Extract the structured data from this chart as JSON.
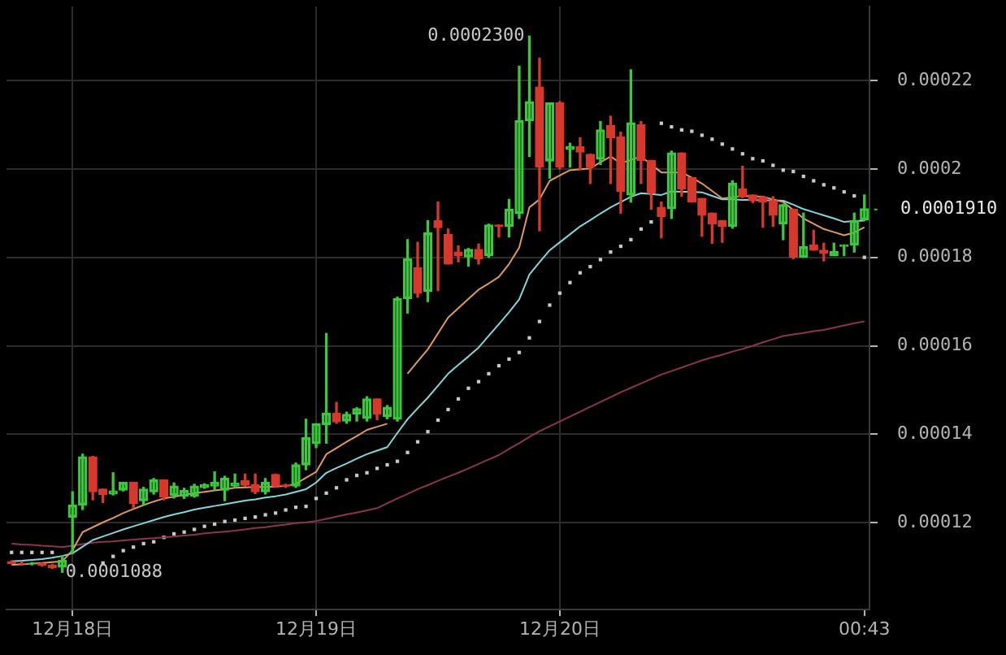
{
  "chart_data": {
    "type": "candlestick",
    "categories": [
      null,
      null,
      null,
      null,
      null,
      null,
      "12月18日",
      null,
      null,
      null,
      null,
      null,
      null,
      null,
      null,
      null,
      null,
      null,
      null,
      null,
      null,
      null,
      null,
      null,
      null,
      null,
      null,
      null,
      null,
      null,
      "12月19日",
      null,
      null,
      null,
      null,
      null,
      null,
      null,
      null,
      null,
      null,
      null,
      null,
      null,
      null,
      null,
      null,
      null,
      null,
      null,
      null,
      null,
      null,
      null,
      "12月20日",
      null,
      null,
      null,
      null,
      null,
      null,
      null,
      null,
      null,
      null,
      null,
      null,
      null,
      null,
      null,
      null,
      null,
      null,
      null,
      null,
      null,
      null,
      null,
      null,
      null,
      null,
      null,
      null,
      null,
      "00:43"
    ],
    "ohlc": [
      [
        0.0001112,
        0.0001114,
        0.0001107,
        0.0001108
      ],
      [
        0.0001108,
        0.0001112,
        0.0001105,
        0.0001107
      ],
      [
        0.0001107,
        0.000111,
        0.0001105,
        0.0001108
      ],
      [
        0.0001108,
        0.000111,
        0.0001102,
        0.0001104
      ],
      [
        0.0001104,
        0.0001106,
        0.0001097,
        0.0001099
      ],
      [
        0.00011,
        0.0001125,
        0.0001088,
        0.0001115
      ],
      [
        0.0001213,
        0.000127,
        0.000113,
        0.000124
      ],
      [
        0.000124,
        0.0001355,
        0.000123,
        0.0001349
      ],
      [
        0.0001349,
        0.000135,
        0.0001252,
        0.000127
      ],
      [
        0.0001276,
        0.0001276,
        0.0001246,
        0.0001264
      ],
      [
        0.0001265,
        0.0001313,
        0.0001263,
        0.0001272
      ],
      [
        0.0001274,
        0.0001291,
        0.0001272,
        0.0001291
      ],
      [
        0.0001291,
        0.0001291,
        0.0001234,
        0.0001243
      ],
      [
        0.000125,
        0.000128,
        0.000124,
        0.0001276
      ],
      [
        0.000127,
        0.00013,
        0.0001265,
        0.0001297
      ],
      [
        0.0001297,
        0.0001297,
        0.0001252,
        0.0001258
      ],
      [
        0.0001262,
        0.000129,
        0.0001256,
        0.0001283
      ],
      [
        0.000126,
        0.0001278,
        0.0001255,
        0.0001273
      ],
      [
        0.000126,
        0.0001287,
        0.0001258,
        0.0001283
      ],
      [
        0.000128,
        0.0001288,
        0.0001278,
        0.0001286
      ],
      [
        0.0001283,
        0.0001315,
        0.0001274,
        0.0001291
      ],
      [
        0.0001274,
        0.0001305,
        0.000125,
        0.0001301
      ],
      [
        0.0001283,
        0.000131,
        0.000128,
        0.000129
      ],
      [
        0.0001295,
        0.000131,
        0.0001283,
        0.0001285
      ],
      [
        0.0001286,
        0.000131,
        0.0001266,
        0.000127
      ],
      [
        0.000127,
        0.00013,
        0.0001265,
        0.0001291
      ],
      [
        0.0001309,
        0.000131,
        0.000128,
        0.0001283
      ],
      [
        0.0001285,
        0.0001287,
        0.000128,
        0.0001283
      ],
      [
        0.0001283,
        0.0001335,
        0.000128,
        0.0001331
      ],
      [
        0.0001331,
        0.0001434,
        0.000132,
        0.0001392
      ],
      [
        0.0001379,
        0.0001424,
        0.000137,
        0.0001424
      ],
      [
        0.0001422,
        0.0001628,
        0.000138,
        0.0001448
      ],
      [
        0.0001448,
        0.0001472,
        0.0001425,
        0.0001428
      ],
      [
        0.000143,
        0.000145,
        0.0001425,
        0.0001445
      ],
      [
        0.0001446,
        0.000146,
        0.000143,
        0.0001458
      ],
      [
        0.0001436,
        0.0001485,
        0.000143,
        0.000148
      ],
      [
        0.000148,
        0.000148,
        0.0001433,
        0.0001446
      ],
      [
        0.000144,
        0.0001465,
        0.0001435,
        0.0001461
      ],
      [
        0.0001434,
        0.000171,
        0.000143,
        0.0001707
      ],
      [
        0.0001707,
        0.000184,
        0.0001674,
        0.0001797
      ],
      [
        0.0001776,
        0.0001834,
        0.000171,
        0.0001719
      ],
      [
        0.0001723,
        0.0001883,
        0.00017,
        0.0001855
      ],
      [
        0.0001883,
        0.0001925,
        0.0001725,
        0.0001867
      ],
      [
        0.0001852,
        0.0001864,
        0.0001785,
        0.0001785
      ],
      [
        0.0001812,
        0.0001826,
        0.000179,
        0.0001804
      ],
      [
        0.0001801,
        0.000182,
        0.000178,
        0.0001818
      ],
      [
        0.0001818,
        0.000183,
        0.0001785,
        0.0001797
      ],
      [
        0.0001804,
        0.0001875,
        0.00018,
        0.0001873
      ],
      [
        0.0001873,
        0.0001873,
        0.0001846,
        0.000187
      ],
      [
        0.000187,
        0.0001931,
        0.0001846,
        0.0001909
      ],
      [
        0.0001899,
        0.0002232,
        0.0001888,
        0.0002109
      ],
      [
        0.0002109,
        0.00023,
        0.0002028,
        0.0002152
      ],
      [
        0.0002185,
        0.000225,
        0.000186,
        0.0002004
      ],
      [
        0.0002018,
        0.0002149,
        0.0001979,
        0.0002149
      ],
      [
        0.0002149,
        0.0002152,
        0.0002,
        0.0002004
      ],
      [
        0.0002044,
        0.0002058,
        0.0002004,
        0.000205
      ],
      [
        0.000205,
        0.000207,
        0.0001998,
        0.0002038
      ],
      [
        0.0002033,
        0.0002033,
        0.0001967,
        0.0002004
      ],
      [
        0.0002022,
        0.0002107,
        0.000201,
        0.0002088
      ],
      [
        0.0002098,
        0.0002119,
        0.0001967,
        0.000207
      ],
      [
        0.0002072,
        0.0002083,
        0.00019,
        0.0001949
      ],
      [
        0.0001941,
        0.0002224,
        0.0001925,
        0.0002104
      ],
      [
        0.00021,
        0.0002107,
        0.0001967,
        0.0002019
      ],
      [
        0.0002019,
        0.0002019,
        0.0001909,
        0.0001945
      ],
      [
        0.0001913,
        0.0001925,
        0.0001844,
        0.0001892
      ],
      [
        0.000191,
        0.000204,
        0.0001888,
        0.0002036
      ],
      [
        0.0002036,
        0.0002036,
        0.0001938,
        0.0001955
      ],
      [
        0.000198,
        0.000198,
        0.0001925,
        0.0001925
      ],
      [
        0.0001933,
        0.0001933,
        0.0001848,
        0.0001895
      ],
      [
        0.00019,
        0.00019,
        0.0001832,
        0.0001876
      ],
      [
        0.0001883,
        0.0001883,
        0.0001834,
        0.000187
      ],
      [
        0.000187,
        0.0001973,
        0.0001866,
        0.0001967
      ],
      [
        0.0001955,
        0.0002006,
        0.0001935,
        0.0001937
      ],
      [
        0.0001941,
        0.0001941,
        0.0001924,
        0.0001928
      ],
      [
        0.0001937,
        0.0001937,
        0.0001868,
        0.0001925
      ],
      [
        0.0001928,
        0.0001937,
        0.000187,
        0.0001895
      ],
      [
        0.0001876,
        0.000192,
        0.000184,
        0.0001919
      ],
      [
        0.0001909,
        0.0001909,
        0.0001797,
        0.00018
      ],
      [
        0.00018,
        0.00019,
        0.00018,
        0.0001824
      ],
      [
        0.0001828,
        0.0001861,
        0.0001816,
        0.0001816
      ],
      [
        0.0001816,
        0.0001832,
        0.0001792,
        0.000181
      ],
      [
        0.0001804,
        0.0001832,
        0.0001804,
        0.0001813
      ],
      [
        0.0001825,
        0.0001828,
        0.0001804,
        0.0001828
      ],
      [
        0.0001828,
        0.00019,
        0.0001812,
        0.0001883
      ],
      [
        0.0001885,
        0.0001941,
        0.0001883,
        0.000191
      ]
    ],
    "colors": [
      "#d8382c",
      "#d8382c",
      "#3cc83c",
      "#d8382c",
      "#d8382c",
      "#3cc83c",
      "#3cc83c",
      "#3cc83c",
      "#d8382c",
      "#d8382c",
      "#3cc83c",
      "#3cc83c",
      "#d8382c",
      "#3cc83c",
      "#3cc83c",
      "#d8382c",
      "#3cc83c",
      "#3cc83c",
      "#3cc83c",
      "#3cc83c",
      "#3cc83c",
      "#3cc83c",
      "#3cc83c",
      "#d8382c",
      "#d8382c",
      "#3cc83c",
      "#d8382c",
      "#d8382c",
      "#3cc83c",
      "#3cc83c",
      "#3cc83c",
      "#3cc83c",
      "#d8382c",
      "#3cc83c",
      "#3cc83c",
      "#3cc83c",
      "#d8382c",
      "#3cc83c",
      "#3cc83c",
      "#3cc83c",
      "#d8382c",
      "#3cc83c",
      "#d8382c",
      "#d8382c",
      "#d8382c",
      "#3cc83c",
      "#d8382c",
      "#3cc83c",
      "#d8382c",
      "#3cc83c",
      "#3cc83c",
      "#3cc83c",
      "#d8382c",
      "#3cc83c",
      "#d8382c",
      "#3cc83c",
      "#d8382c",
      "#d8382c",
      "#3cc83c",
      "#d8382c",
      "#d8382c",
      "#3cc83c",
      "#d8382c",
      "#d8382c",
      "#d8382c",
      "#3cc83c",
      "#d8382c",
      "#d8382c",
      "#d8382c",
      "#d8382c",
      "#d8382c",
      "#3cc83c",
      "#d8382c",
      "#d8382c",
      "#d8382c",
      "#d8382c",
      "#3cc83c",
      "#d8382c",
      "#3cc83c",
      "#d8382c",
      "#d8382c",
      "#3cc83c",
      "#3cc83c",
      "#3cc83c",
      "#3cc83c"
    ],
    "series": [
      {
        "type": "line",
        "color": "#e09a58",
        "values": [
          0.0001105,
          0.0001106,
          0.0001108,
          0.0001109,
          0.0001111,
          0.0001113,
          0.0001138,
          0.0001179,
          0.000119,
          0.0001201,
          0.0001211,
          0.0001222,
          0.0001231,
          0.000124,
          0.0001248,
          0.0001255,
          0.0001259,
          0.0001263,
          0.0001267,
          0.000127,
          0.0001273,
          0.0001276,
          0.0001279,
          0.000128,
          0.0001281,
          0.0001281,
          0.0001282,
          0.0001283,
          0.0001288,
          0.0001302,
          0.0001315,
          0.0001355,
          0.0001369,
          0.0001383,
          0.0001396,
          0.000141,
          0.0001417,
          0.0001424,
          null,
          0.0001537,
          0.0001565,
          0.0001592,
          0.0001628,
          0.0001664,
          0.0001685,
          0.0001706,
          0.0001727,
          0.0001741,
          0.0001756,
          0.0001785,
          0.0001822,
          0.0001913,
          0.0001931,
          0.0001973,
          0.0001985,
          0.0001997,
          0.0001999,
          0.0002001,
          0.0002015,
          0.0002028,
          0.0002013,
          0.000202,
          0.0002028,
          0.000201,
          0.0001992,
          0.0001992,
          0.0001992,
          0.000198,
          0.0001967,
          0.000195,
          0.0001933,
          0.0001936,
          0.0001939,
          0.0001938,
          0.0001937,
          0.0001931,
          0.0001925,
          0.0001907,
          0.0001888,
          0.0001876,
          0.0001864,
          0.0001857,
          0.000185,
          0.0001856,
          0.0001868
        ]
      },
      {
        "type": "line",
        "color": "#80d8dc",
        "values": [
          0.0001113,
          0.0001114,
          0.0001116,
          0.0001118,
          0.0001121,
          0.0001125,
          0.0001131,
          0.0001146,
          0.0001161,
          0.0001169,
          0.0001177,
          0.0001185,
          0.0001192,
          0.0001199,
          0.0001206,
          0.0001213,
          0.0001219,
          0.0001224,
          0.000123,
          0.0001234,
          0.0001238,
          0.0001242,
          0.0001246,
          0.000125,
          0.0001253,
          0.0001257,
          0.000126,
          0.0001264,
          0.000127,
          0.0001276,
          0.0001291,
          0.0001313,
          0.0001324,
          0.0001334,
          0.0001345,
          0.0001355,
          0.0001363,
          0.0001371,
          0.0001403,
          0.0001434,
          0.0001459,
          0.0001483,
          0.000151,
          0.0001537,
          0.0001557,
          0.0001576,
          0.0001596,
          0.0001623,
          0.0001649,
          0.0001676,
          0.0001705,
          0.0001761,
          0.0001789,
          0.0001816,
          0.0001834,
          0.0001852,
          0.000187,
          0.0001884,
          0.0001899,
          0.0001913,
          0.0001925,
          0.0001937,
          0.0001945,
          0.0001943,
          0.0001941,
          0.0001949,
          0.0001948,
          0.0001948,
          0.0001947,
          0.0001939,
          0.0001931,
          0.0001931,
          0.000193,
          0.000193,
          0.0001929,
          0.0001929,
          0.0001928,
          0.0001919,
          0.0001909,
          0.0001902,
          0.0001895,
          0.0001888,
          0.000188,
          0.0001882,
          0.0001883
        ]
      },
      {
        "type": "line",
        "color": "#8c3452",
        "values": [
          0.0001153,
          0.0001151,
          0.000115,
          0.0001148,
          0.0001147,
          0.0001145,
          0.0001148,
          0.0001152,
          0.0001155,
          0.0001157,
          0.0001158,
          0.000116,
          0.0001162,
          0.0001164,
          0.0001165,
          0.0001167,
          0.0001169,
          0.0001171,
          0.0001173,
          0.0001176,
          0.0001178,
          0.000118,
          0.0001182,
          0.0001185,
          0.0001188,
          0.000119,
          0.0001193,
          0.0001196,
          0.0001199,
          0.0001201,
          0.0001204,
          0.0001209,
          0.0001214,
          0.0001219,
          0.0001223,
          0.0001228,
          0.0001233,
          0.0001244,
          0.0001255,
          0.0001265,
          0.0001276,
          0.0001285,
          0.0001295,
          0.0001304,
          0.0001313,
          0.0001323,
          0.0001333,
          0.0001343,
          0.0001353,
          0.0001367,
          0.000138,
          0.0001394,
          0.0001407,
          0.0001418,
          0.0001429,
          0.000144,
          0.0001451,
          0.0001462,
          0.0001473,
          0.0001484,
          0.0001495,
          0.0001505,
          0.0001515,
          0.0001525,
          0.0001535,
          0.0001543,
          0.0001551,
          0.0001559,
          0.0001567,
          0.0001574,
          0.000158,
          0.0001587,
          0.0001593,
          0.00016,
          0.0001608,
          0.0001615,
          0.0001622,
          0.0001626,
          0.0001629,
          0.0001633,
          0.0001636,
          0.0001641,
          0.0001646,
          0.0001651,
          0.0001655
        ]
      },
      {
        "type": "scatter",
        "marker": "square",
        "color": "#c8c8c8",
        "values": [
          0.0001133,
          0.0001133,
          0.0001133,
          0.0001133,
          0.0001133,
          null,
          null,
          null,
          null,
          0.0001109,
          0.0001124,
          0.0001137,
          0.0001145,
          0.0001153,
          0.0001157,
          0.0001167,
          0.0001175,
          0.0001179,
          0.0001185,
          0.0001192,
          0.0001197,
          0.0001203,
          0.0001206,
          0.000121,
          0.0001213,
          0.0001218,
          0.0001222,
          0.0001229,
          0.0001235,
          0.0001237,
          0.0001255,
          0.0001267,
          0.0001279,
          0.0001297,
          0.0001307,
          0.0001313,
          0.0001323,
          0.0001331,
          0.0001339,
          0.0001359,
          0.0001383,
          0.0001406,
          0.0001432,
          0.0001456,
          0.000148,
          0.0001504,
          0.0001519,
          0.0001537,
          0.0001555,
          0.000157,
          0.0001585,
          0.0001618,
          0.0001655,
          0.0001692,
          0.0001719,
          0.0001743,
          0.0001765,
          0.0001779,
          0.0001795,
          0.0001812,
          0.0001825,
          0.000184,
          0.0001864,
          0.000188,
          0.0002103,
          0.0002095,
          0.0002088,
          0.0002085,
          0.0002076,
          0.0002067,
          0.0002056,
          0.0002045,
          0.0002034,
          0.0002023,
          0.0002018,
          0.0002008,
          0.0001997,
          0.0001994,
          0.0001983,
          0.0001973,
          0.0001964,
          0.0001957,
          0.0001948,
          0.0001939,
          0.00018
        ]
      }
    ],
    "ylim": [
      0.0001004,
      0.0002367
    ],
    "yticks": [
      0.00012,
      0.00014,
      0.00016,
      0.00018,
      0.0002,
      0.00022
    ],
    "ref_lines": [
      {
        "axis": "y",
        "value": 0.000191,
        "label": "0.0001910",
        "color": "#3cc83c",
        "line_style": "dotted"
      }
    ],
    "annotations": [
      "0.0002300",
      "0.0001088"
    ],
    "grid": true
  }
}
